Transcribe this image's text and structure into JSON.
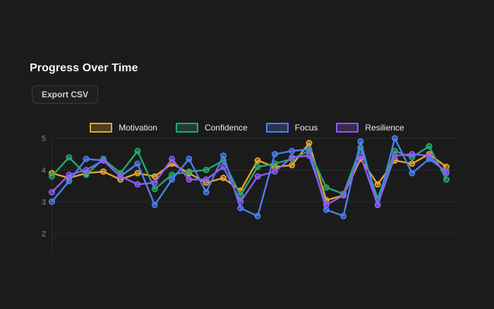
{
  "page": {
    "title": "Progress Over Time",
    "export_button": "Export CSV"
  },
  "chart_data": {
    "type": "line",
    "title": "Progress Over Time",
    "xlabel": "",
    "ylabel": "",
    "ylim": [
      2,
      5
    ],
    "yticks": [
      5,
      4,
      3,
      2
    ],
    "grid": true,
    "legend_position": "top-center",
    "x_point_count": 24,
    "colors": {
      "background": "#1b1b1b",
      "gridline": "#2c2c2c",
      "axis": "#2f2f2f",
      "tick_text": "#8d8d8d"
    },
    "series": [
      {
        "name": "Motivation",
        "color": "#E3A72F",
        "values": [
          3.9,
          3.75,
          3.9,
          3.95,
          3.7,
          3.9,
          3.8,
          4.2,
          3.9,
          3.6,
          3.75,
          3.35,
          4.3,
          4.1,
          4.15,
          4.85,
          3.05,
          3.2,
          4.35,
          3.55,
          4.3,
          4.2,
          4.5,
          4.1
        ]
      },
      {
        "name": "Confidence",
        "color": "#26A96C",
        "values": [
          3.8,
          4.4,
          3.85,
          4.35,
          3.9,
          4.6,
          3.4,
          3.85,
          3.95,
          4.0,
          4.3,
          3.2,
          4.1,
          4.2,
          4.35,
          4.6,
          3.45,
          3.25,
          4.7,
          3.1,
          4.6,
          4.4,
          4.75,
          3.7
        ]
      },
      {
        "name": "Focus",
        "color": "#4A80F0",
        "values": [
          3.0,
          3.65,
          4.35,
          4.3,
          3.8,
          4.2,
          2.9,
          3.7,
          4.35,
          3.3,
          4.45,
          2.8,
          2.55,
          4.5,
          4.6,
          4.65,
          2.75,
          2.55,
          4.9,
          2.9,
          5.0,
          3.9,
          4.35,
          3.95
        ]
      },
      {
        "name": "Resilience",
        "color": "#8B5CF6",
        "values": [
          3.3,
          3.85,
          4.0,
          4.3,
          3.8,
          3.55,
          3.6,
          4.35,
          3.7,
          3.7,
          4.1,
          3.0,
          3.8,
          3.95,
          4.4,
          4.45,
          2.9,
          3.2,
          4.45,
          2.9,
          4.45,
          4.5,
          4.45,
          3.9
        ]
      }
    ]
  }
}
